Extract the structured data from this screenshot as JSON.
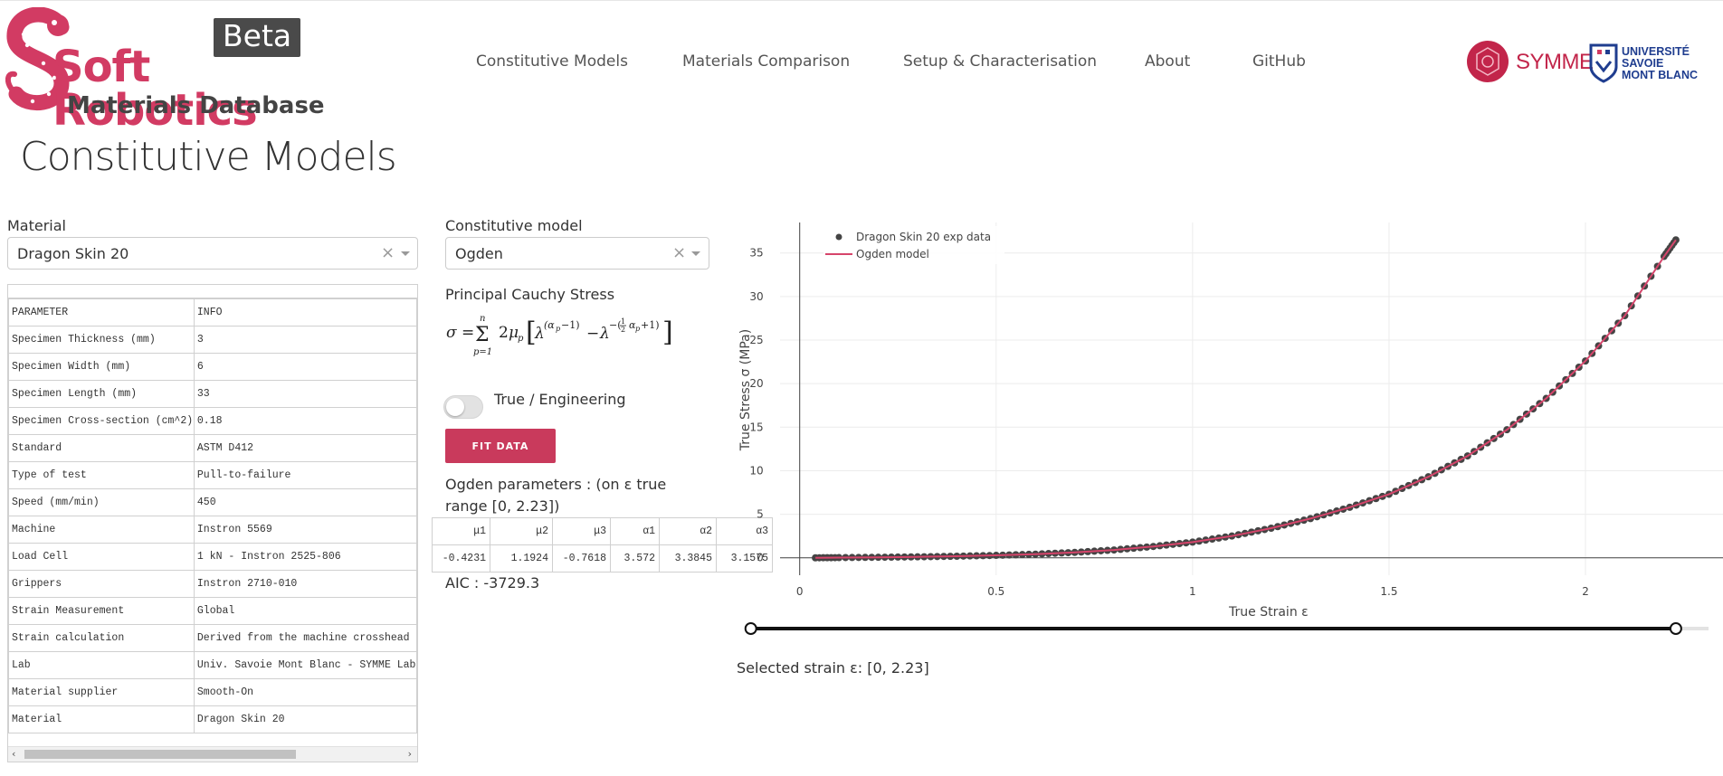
{
  "header": {
    "logo": {
      "title_word": "Soft Robotics",
      "subtitle": "Materials Database",
      "badge": "Beta"
    },
    "nav": [
      {
        "label": "Constitutive Models"
      },
      {
        "label": "Materials Comparison"
      },
      {
        "label": "Setup & Characterisation"
      },
      {
        "label": "About"
      },
      {
        "label": "GitHub"
      }
    ],
    "partners": {
      "symme": "SYMME",
      "usmb_lines": [
        "UNIVERSITÉ",
        "SAVOIE",
        "MONT BLANC"
      ]
    }
  },
  "page_title": "Constitutive Models",
  "material": {
    "label": "Material",
    "selected": "Dragon Skin 20"
  },
  "model": {
    "label": "Constitutive model",
    "selected": "Ogden"
  },
  "params_table": {
    "headers": [
      "PARAMETER",
      "INFO"
    ],
    "rows": [
      [
        "Specimen Thickness (mm)",
        "3"
      ],
      [
        "Specimen Width (mm)",
        "6"
      ],
      [
        "Specimen Length (mm)",
        "33"
      ],
      [
        "Specimen Cross-section (cm^2)",
        "0.18"
      ],
      [
        "Standard",
        "ASTM D412"
      ],
      [
        "Type of test",
        "Pull-to-failure"
      ],
      [
        "Speed (mm/min)",
        "450"
      ],
      [
        "Machine",
        "Instron 5569"
      ],
      [
        "Load Cell",
        "1 kN - Instron 2525-806"
      ],
      [
        "Grippers",
        "Instron 2710-010"
      ],
      [
        "Strain Measurement",
        "Global"
      ],
      [
        "Strain calculation",
        "Derived from the machine crosshead"
      ],
      [
        "Lab",
        "Univ. Savoie Mont Blanc - SYMME Lab"
      ],
      [
        "Material supplier",
        "Smooth-On"
      ],
      [
        "Material",
        "Dragon Skin 20"
      ]
    ]
  },
  "stress": {
    "label": "Principal Cauchy Stress",
    "formula": "σ = Σ_{p=1}^{n} 2μ_p [ λ^(α_p − 1) − λ^−(½α_p + 1) ]"
  },
  "toggle": {
    "label": "True / Engineering",
    "checked": false
  },
  "fit_button": "FIT DATA",
  "ogden_params": {
    "caption": "Ogden parameters : (on ε true range [0, 2.23])",
    "headers": [
      "μ1",
      "μ2",
      "μ3",
      "α1",
      "α2",
      "α3"
    ],
    "values": [
      "-0.4231",
      "1.1924",
      "-0.7618",
      "3.572",
      "3.3845",
      "3.1575"
    ]
  },
  "aic": "AIC : -3729.3",
  "selected_strain": "Selected strain ε: [0, 2.23]",
  "colors": {
    "brand": "#d23b63",
    "button": "#c93a5c",
    "model_line": "#d6456b",
    "exp_points": "#444444",
    "usmb": "#1f3d8f"
  },
  "chart_data": {
    "type": "scatter",
    "xlabel": "True Strain ε",
    "ylabel": "True Stress σ (MPa)",
    "xlim": [
      -0.05,
      2.35
    ],
    "ylim": [
      -2,
      38.5
    ],
    "xticks": [
      0,
      0.5,
      1,
      1.5,
      2
    ],
    "yticks": [
      0,
      5,
      10,
      15,
      20,
      25,
      30,
      35
    ],
    "grid": true,
    "legend_position": "top-left",
    "series": [
      {
        "name": "Dragon Skin 20 exp data",
        "kind": "markers",
        "color": "#444444",
        "x": [
          0.04,
          0.1,
          0.2,
          0.3,
          0.4,
          0.5,
          0.6,
          0.7,
          0.8,
          0.9,
          1.0,
          1.1,
          1.2,
          1.3,
          1.4,
          1.5,
          1.6,
          1.7,
          1.8,
          1.9,
          2.0,
          2.1,
          2.2,
          2.23
        ],
        "y": [
          0.0,
          0.02,
          0.06,
          0.11,
          0.18,
          0.28,
          0.42,
          0.62,
          0.9,
          1.3,
          1.8,
          2.5,
          3.4,
          4.5,
          5.8,
          7.3,
          9.3,
          11.7,
          14.7,
          18.3,
          22.6,
          27.8,
          34.6,
          36.5
        ]
      },
      {
        "name": "Ogden model",
        "kind": "line",
        "color": "#d6456b",
        "x": [
          0.04,
          0.1,
          0.2,
          0.3,
          0.4,
          0.5,
          0.6,
          0.7,
          0.8,
          0.9,
          1.0,
          1.1,
          1.2,
          1.3,
          1.4,
          1.5,
          1.6,
          1.7,
          1.8,
          1.9,
          2.0,
          2.1,
          2.2,
          2.23
        ],
        "y": [
          0.0,
          0.02,
          0.06,
          0.11,
          0.18,
          0.28,
          0.42,
          0.62,
          0.9,
          1.3,
          1.8,
          2.5,
          3.4,
          4.5,
          5.8,
          7.3,
          9.3,
          11.7,
          14.7,
          18.3,
          22.6,
          27.8,
          34.6,
          36.5
        ]
      }
    ],
    "range_slider": {
      "min": 0,
      "max": 2.23
    }
  }
}
